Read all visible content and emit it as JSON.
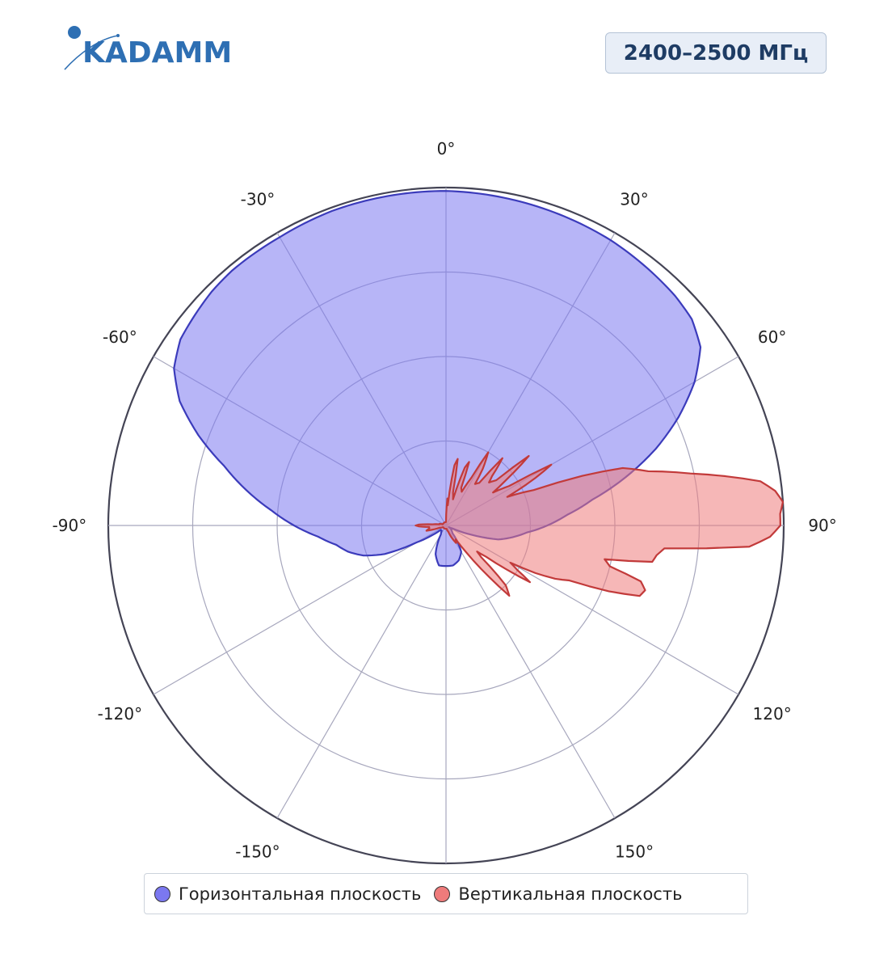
{
  "logo": {
    "text": "KADAMM",
    "color": "#2e6fb3"
  },
  "band_label": "2400–2500 МГц",
  "chart_data": {
    "type": "polar-area",
    "angle_units": "degrees",
    "angle_zero": "top",
    "angle_direction": "clockwise",
    "angle_ticks": [
      0,
      30,
      60,
      90,
      120,
      150,
      180,
      -150,
      -120,
      -90,
      -60,
      -30
    ],
    "angle_tick_labels": [
      "0°",
      "30°",
      "60°",
      "90°",
      "120°",
      "150°",
      "",
      "-150°",
      "-120°",
      "-90°",
      "-60°",
      "-30°"
    ],
    "radial_range": [
      0,
      1
    ],
    "radial_grid": [
      0.25,
      0.5,
      0.75,
      1.0
    ],
    "radial_tick_labels_visible": false,
    "grid": true,
    "legend_position": "bottom",
    "series": [
      {
        "name": "Горизонтальная плоскость",
        "color": "#7b78f0",
        "fill_opacity": 0.55,
        "line_color": "#3b3bbb",
        "angles": [
          0,
          10,
          20,
          30,
          40,
          45,
          50,
          55,
          60,
          65,
          70,
          75,
          80,
          85,
          90,
          95,
          100,
          105,
          110,
          115,
          120,
          125,
          130,
          140,
          150,
          160,
          170,
          175,
          180,
          185,
          190,
          200,
          210,
          220,
          230,
          235,
          240,
          245,
          250,
          255,
          260,
          265,
          270,
          275,
          280,
          285,
          290,
          295,
          300,
          305,
          310,
          315,
          320,
          330,
          340,
          350
        ],
        "values": [
          0.99,
          0.985,
          0.98,
          0.975,
          0.965,
          0.96,
          0.95,
          0.92,
          0.85,
          0.76,
          0.66,
          0.55,
          0.44,
          0.36,
          0.3,
          0.24,
          0.2,
          0.16,
          0.08,
          0.02,
          0.01,
          0.02,
          0.02,
          0.03,
          0.09,
          0.11,
          0.12,
          0.12,
          0.12,
          0.12,
          0.12,
          0.09,
          0.03,
          0.02,
          0.02,
          0.05,
          0.1,
          0.2,
          0.26,
          0.3,
          0.33,
          0.38,
          0.45,
          0.52,
          0.6,
          0.68,
          0.78,
          0.87,
          0.93,
          0.96,
          0.97,
          0.98,
          0.985,
          0.985,
          0.99,
          0.99
        ]
      },
      {
        "name": "Вертикальная плоскость",
        "color": "#ef7b7b",
        "fill_opacity": 0.55,
        "line_color": "#c23a3a",
        "angles": [
          0,
          3,
          5,
          8,
          10,
          12,
          15,
          18,
          20,
          22,
          25,
          28,
          30,
          33,
          35,
          38,
          40,
          43,
          45,
          48,
          50,
          53,
          55,
          58,
          60,
          62,
          65,
          68,
          70,
          72,
          75,
          78,
          80,
          82,
          84,
          86,
          88,
          90,
          92,
          94,
          96,
          98,
          100,
          102,
          104,
          106,
          108,
          110,
          112,
          114,
          116,
          118,
          120,
          122,
          124,
          126,
          128,
          130,
          132,
          135,
          138,
          140,
          143,
          145,
          150,
          155,
          160,
          170,
          180,
          190,
          200,
          210,
          220,
          230,
          240,
          250,
          255,
          260,
          265,
          268,
          270,
          272,
          275,
          280,
          285,
          290,
          300,
          310,
          320,
          330,
          340,
          350,
          355
        ],
        "values": [
          0.01,
          0.08,
          0.06,
          0.18,
          0.2,
          0.1,
          0.08,
          0.18,
          0.2,
          0.12,
          0.11,
          0.16,
          0.25,
          0.2,
          0.15,
          0.16,
          0.26,
          0.2,
          0.18,
          0.2,
          0.32,
          0.22,
          0.17,
          0.22,
          0.36,
          0.3,
          0.2,
          0.28,
          0.43,
          0.55,
          0.62,
          0.74,
          0.84,
          0.94,
          0.98,
          1.0,
          0.99,
          0.99,
          0.96,
          0.9,
          0.65,
          0.63,
          0.62,
          0.48,
          0.5,
          0.6,
          0.62,
          0.61,
          0.52,
          0.4,
          0.36,
          0.3,
          0.22,
          0.25,
          0.3,
          0.22,
          0.15,
          0.12,
          0.14,
          0.25,
          0.28,
          0.2,
          0.1,
          0.05,
          0.06,
          0.04,
          0.02,
          0.01,
          0.01,
          0.01,
          0.01,
          0.01,
          0.01,
          0.01,
          0.01,
          0.02,
          0.06,
          0.05,
          0.05,
          0.08,
          0.09,
          0.08,
          0.04,
          0.02,
          0.02,
          0.01,
          0.01,
          0.01,
          0.01,
          0.01,
          0.01,
          0.01,
          0.01
        ]
      }
    ]
  }
}
